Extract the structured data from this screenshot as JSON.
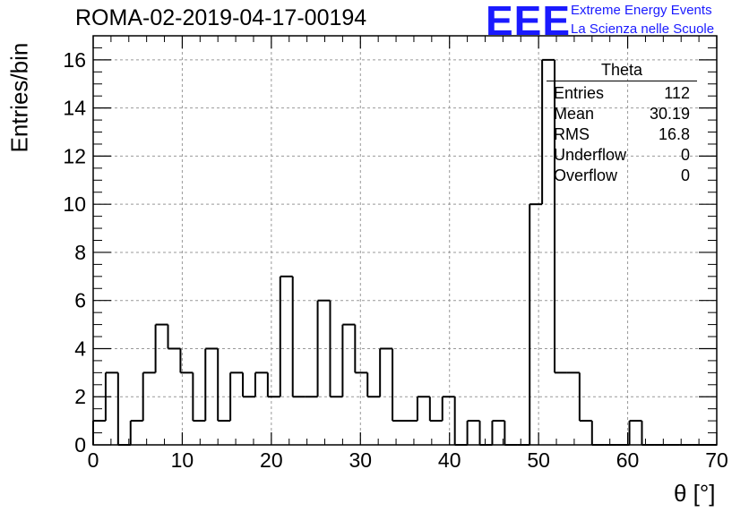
{
  "title": "ROMA-02-2019-04-17-00194",
  "logo": {
    "mark": "EEE",
    "line1": "Extreme Energy Events",
    "line2": "La Scienza nelle Scuole",
    "color": "#1a1aff"
  },
  "stats": {
    "title": "Theta",
    "rows": [
      {
        "label": "Entries",
        "value": "112"
      },
      {
        "label": "Mean",
        "value": "30.19"
      },
      {
        "label": "RMS",
        "value": "16.8"
      },
      {
        "label": "Underflow",
        "value": "0"
      },
      {
        "label": "Overflow",
        "value": "0"
      }
    ]
  },
  "chart_data": {
    "type": "bar",
    "subtype": "histogram",
    "title": "ROMA-02-2019-04-17-00194",
    "xlabel": "θ [°]",
    "ylabel": "Entries/bin",
    "xlim": [
      0,
      70
    ],
    "ylim": [
      0,
      17
    ],
    "xticks": [
      "0",
      "10",
      "20",
      "30",
      "40",
      "50",
      "60",
      "70"
    ],
    "yticks": [
      "0",
      "2",
      "4",
      "6",
      "8",
      "10",
      "12",
      "14",
      "16"
    ],
    "grid": true,
    "line_color": "#000000",
    "bin_width": 1.4,
    "bin_edges_start": 0,
    "values": [
      1,
      3,
      0,
      1,
      3,
      5,
      4,
      3,
      1,
      4,
      1,
      3,
      2,
      3,
      2,
      7,
      2,
      2,
      6,
      2,
      5,
      3,
      2,
      4,
      1,
      1,
      2,
      1,
      2,
      0,
      1,
      0,
      1,
      0,
      0,
      10,
      16,
      3,
      3,
      1,
      0,
      0,
      0,
      1,
      0,
      0,
      0,
      0,
      0,
      0
    ]
  }
}
